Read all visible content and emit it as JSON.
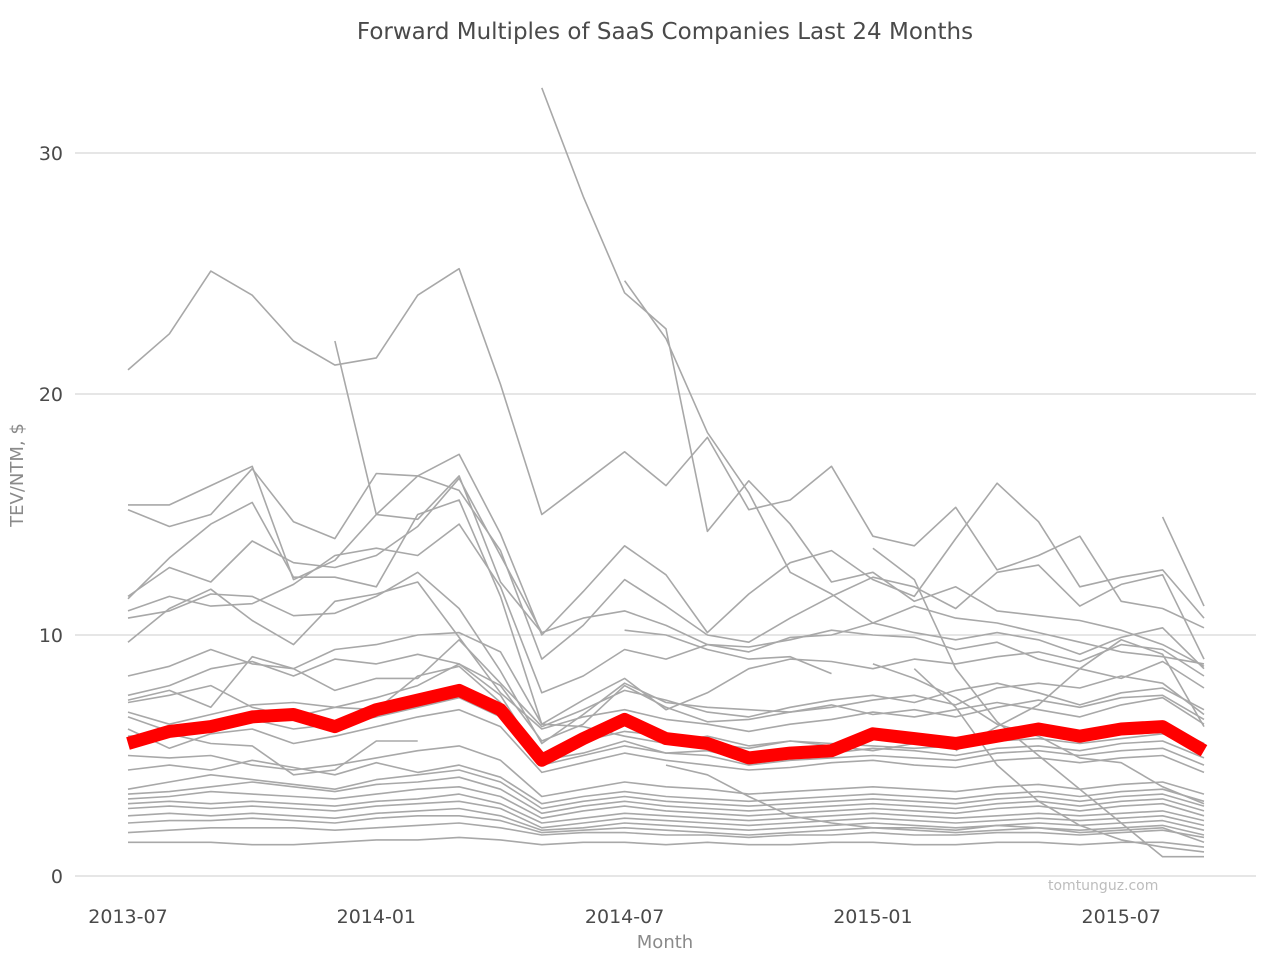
{
  "chart_data": {
    "type": "line",
    "title": "Forward Multiples of SaaS Companies Last 24 Months",
    "xlabel": "Month",
    "ylabel": "TEV/NTM, $",
    "watermark": "tomtunguz.com",
    "x_tick_labels": [
      "2013-07",
      "2014-01",
      "2014-07",
      "2015-01",
      "2015-07"
    ],
    "y_tick_labels": [
      "0",
      "10",
      "20",
      "30"
    ],
    "ylim": [
      0,
      33
    ],
    "grid": true,
    "colors": {
      "companies": "#a8a8a8",
      "highlight": "#ff0000",
      "grid": "#cccccc"
    },
    "x": [
      "2013-07",
      "2013-08",
      "2013-09",
      "2013-10",
      "2013-11",
      "2013-12",
      "2014-01",
      "2014-02",
      "2014-03",
      "2014-04",
      "2014-05",
      "2014-06",
      "2014-07",
      "2014-08",
      "2014-09",
      "2014-10",
      "2014-11",
      "2014-12",
      "2015-01",
      "2015-02",
      "2015-03",
      "2015-04",
      "2015-05",
      "2015-06",
      "2015-07",
      "2015-08",
      "2015-09"
    ],
    "highlight_series": {
      "values": [
        5.5,
        6.0,
        6.2,
        6.6,
        6.7,
        6.2,
        6.9,
        7.3,
        7.7,
        6.9,
        4.8,
        5.7,
        6.5,
        5.7,
        5.5,
        4.9,
        5.1,
        5.2,
        5.9,
        5.7,
        5.5,
        5.8,
        6.1,
        5.8,
        6.1,
        6.2,
        5.2
      ]
    },
    "series": [
      {
        "values": [
          21.0,
          22.5,
          25.1,
          24.1,
          22.2,
          21.2,
          21.5,
          24.1,
          25.2,
          20.4,
          15.0,
          16.3,
          17.6,
          16.2,
          18.2,
          15.2,
          15.6,
          17.0,
          14.1,
          13.7,
          15.3,
          12.7,
          13.3,
          14.1,
          11.4,
          11.1,
          10.3
        ]
      },
      {
        "values": [
          null,
          null,
          null,
          null,
          null,
          22.2,
          15.0,
          14.8,
          16.6,
          12.2,
          10.1,
          null,
          null,
          null,
          null,
          null,
          null,
          null,
          null,
          null,
          null,
          null,
          null,
          null,
          null,
          null,
          null
        ]
      },
      {
        "values": [
          null,
          null,
          null,
          null,
          null,
          null,
          null,
          null,
          null,
          null,
          32.7,
          28.2,
          24.2,
          22.7,
          14.3,
          16.4,
          14.6,
          12.2,
          12.6,
          11.4,
          12.0,
          11.0,
          10.8,
          10.6,
          10.2,
          9.6,
          8.7
        ]
      },
      {
        "values": [
          null,
          null,
          null,
          null,
          null,
          null,
          null,
          null,
          null,
          null,
          null,
          null,
          24.7,
          22.3,
          18.4,
          15.9,
          12.6,
          11.7,
          10.5,
          11.2,
          10.7,
          10.5,
          10.1,
          9.7,
          9.3,
          9.1,
          8.8
        ]
      },
      {
        "values": [
          15.4,
          15.4,
          16.2,
          17.0,
          12.3,
          13.1,
          15.0,
          16.6,
          17.5,
          14.2,
          10.0,
          11.8,
          13.7,
          12.5,
          10.1,
          11.7,
          13.0,
          13.5,
          12.3,
          11.6,
          14.0,
          16.3,
          14.7,
          12.0,
          12.4,
          12.7,
          10.7
        ]
      },
      {
        "values": [
          15.2,
          14.5,
          15.0,
          16.9,
          14.7,
          14.0,
          16.7,
          16.6,
          16.0,
          13.5,
          9.0,
          10.4,
          12.3,
          11.2,
          10.0,
          9.7,
          10.7,
          11.6,
          12.4,
          12.0,
          11.1,
          12.6,
          12.9,
          11.2,
          12.1,
          12.5,
          9.0
        ]
      },
      {
        "values": [
          11.5,
          13.2,
          14.6,
          15.5,
          12.4,
          12.4,
          12.0,
          15.0,
          15.6,
          11.6,
          6.3,
          7.3,
          8.2,
          6.9,
          7.6,
          8.6,
          9.0,
          8.9,
          8.6,
          9.0,
          8.8,
          9.1,
          9.3,
          8.9,
          9.6,
          9.4,
          8.3
        ]
      },
      {
        "values": [
          11.6,
          12.8,
          12.2,
          13.9,
          13.0,
          12.8,
          13.3,
          14.5,
          16.5,
          13.3,
          10.1,
          10.7,
          11.0,
          10.4,
          9.6,
          9.5,
          9.8,
          10.2,
          10.0,
          9.9,
          9.4,
          9.7,
          9.0,
          8.6,
          8.2,
          8.9,
          7.8
        ]
      },
      {
        "values": [
          11.0,
          11.6,
          11.2,
          11.3,
          12.1,
          13.3,
          13.6,
          13.3,
          14.6,
          12.0,
          7.6,
          8.3,
          9.4,
          9.0,
          9.6,
          9.3,
          9.9,
          10.0,
          10.5,
          10.1,
          9.8,
          10.1,
          9.8,
          9.2,
          9.9,
          10.3,
          8.6
        ]
      },
      {
        "values": [
          10.7,
          11.0,
          11.7,
          11.6,
          10.8,
          10.9,
          11.6,
          12.6,
          11.1,
          8.5,
          5.5,
          6.7,
          8.0,
          7.2,
          7.0,
          6.9,
          6.8,
          7.0,
          7.3,
          7.5,
          7.1,
          7.8,
          8.0,
          7.8,
          8.3,
          8.0,
          6.7
        ]
      },
      {
        "values": [
          9.7,
          11.1,
          11.9,
          10.6,
          9.6,
          11.4,
          11.7,
          12.2,
          9.9,
          7.6,
          6.1,
          6.6,
          6.9,
          6.5,
          6.3,
          6.0,
          6.3,
          6.5,
          6.8,
          6.6,
          6.9,
          7.2,
          6.9,
          6.6,
          7.1,
          7.4,
          6.3
        ]
      },
      {
        "values": [
          8.3,
          8.7,
          9.4,
          8.8,
          8.6,
          9.4,
          9.6,
          10.0,
          10.1,
          9.3,
          6.3,
          6.2,
          5.8,
          5.5,
          5.8,
          5.4,
          5.6,
          5.5,
          5.4,
          5.3,
          5.4,
          5.6,
          5.7,
          5.5,
          5.7,
          5.9,
          5.5
        ]
      },
      {
        "values": [
          7.5,
          7.9,
          8.6,
          8.9,
          8.3,
          9.0,
          8.8,
          9.2,
          8.8,
          7.5,
          4.8,
          5.1,
          5.6,
          5.1,
          5.2,
          4.8,
          4.9,
          5.1,
          5.3,
          5.2,
          5.0,
          5.3,
          5.4,
          5.2,
          5.5,
          5.6,
          4.9
        ]
      },
      {
        "values": [
          7.3,
          7.7,
          7.0,
          9.1,
          8.6,
          7.7,
          8.2,
          8.2,
          9.8,
          8.0,
          6.2,
          6.9,
          7.7,
          7.3,
          6.8,
          6.6,
          7.0,
          7.3,
          7.5,
          7.2,
          7.7,
          8.0,
          7.6,
          7.1,
          7.6,
          7.8,
          6.9
        ]
      },
      {
        "values": [
          7.2,
          7.5,
          7.9,
          7.0,
          6.6,
          7.0,
          7.4,
          7.9,
          8.8,
          7.9,
          5.6,
          6.3,
          7.9,
          7.0,
          6.4,
          6.5,
          6.8,
          7.1,
          6.7,
          6.9,
          6.6,
          7.0,
          7.3,
          7.0,
          7.4,
          7.5,
          6.5
        ]
      },
      {
        "values": [
          6.8,
          6.3,
          6.7,
          7.1,
          7.2,
          7.0,
          6.9,
          8.3,
          8.7,
          7.2,
          5.1,
          5.6,
          6.0,
          5.8,
          5.5,
          5.3,
          5.6,
          5.4,
          5.2,
          5.5,
          5.6,
          5.9,
          6.1,
          5.8,
          6.2,
          6.3,
          5.5
        ]
      },
      {
        "values": [
          6.6,
          6.0,
          6.4,
          6.5,
          6.1,
          6.3,
          6.6,
          7.0,
          7.4,
          6.6,
          4.6,
          5.0,
          5.4,
          5.1,
          5.0,
          4.6,
          4.8,
          4.9,
          5.0,
          4.9,
          4.8,
          5.1,
          5.2,
          5.0,
          5.2,
          5.3,
          4.6
        ]
      },
      {
        "values": [
          6.1,
          5.3,
          5.9,
          6.1,
          5.5,
          5.8,
          6.2,
          6.6,
          6.9,
          6.2,
          4.3,
          4.7,
          5.1,
          4.8,
          4.6,
          4.4,
          4.5,
          4.7,
          4.8,
          4.6,
          4.5,
          4.8,
          4.9,
          4.7,
          4.9,
          5.0,
          4.3
        ]
      },
      {
        "values": [
          5.8,
          5.9,
          5.5,
          5.4,
          4.2,
          4.4,
          5.6,
          5.6,
          null,
          null,
          null,
          null,
          null,
          null,
          null,
          null,
          null,
          null,
          null,
          null,
          null,
          null,
          null,
          null,
          null,
          null,
          null
        ]
      },
      {
        "values": [
          null,
          null,
          null,
          null,
          null,
          null,
          null,
          null,
          null,
          null,
          null,
          null,
          null,
          null,
          null,
          null,
          null,
          null,
          13.6,
          12.3,
          8.6,
          6.4,
          5.0,
          3.6,
          2.2,
          0.8,
          0.8
        ]
      },
      {
        "values": [
          null,
          null,
          null,
          null,
          null,
          null,
          null,
          null,
          null,
          null,
          null,
          null,
          null,
          null,
          null,
          null,
          null,
          null,
          null,
          null,
          null,
          null,
          null,
          null,
          null,
          14.9,
          11.2
        ]
      },
      {
        "values": [
          null,
          null,
          null,
          null,
          null,
          null,
          null,
          null,
          null,
          null,
          null,
          null,
          null,
          null,
          null,
          null,
          null,
          null,
          null,
          8.6,
          7.0,
          4.6,
          3.1,
          2.1,
          1.5,
          1.2,
          1.0
        ]
      },
      {
        "values": [
          5.0,
          4.9,
          5.0,
          4.6,
          4.4,
          4.6,
          4.9,
          5.2,
          5.4,
          4.8,
          3.3,
          3.6,
          3.9,
          3.7,
          3.6,
          3.4,
          3.5,
          3.6,
          3.7,
          3.6,
          3.5,
          3.7,
          3.8,
          3.6,
          3.8,
          3.9,
          3.4
        ]
      },
      {
        "values": [
          4.4,
          4.6,
          4.4,
          4.8,
          4.5,
          4.2,
          4.7,
          4.3,
          4.6,
          4.1,
          3.0,
          3.3,
          3.5,
          3.3,
          3.2,
          3.1,
          3.2,
          3.3,
          3.4,
          3.3,
          3.2,
          3.4,
          3.5,
          3.3,
          3.5,
          3.6,
          3.1
        ]
      },
      {
        "values": [
          3.6,
          3.9,
          4.2,
          4.0,
          3.8,
          3.6,
          4.0,
          4.2,
          4.4,
          3.9,
          2.8,
          3.1,
          3.3,
          3.1,
          3.0,
          2.9,
          3.0,
          3.1,
          3.2,
          3.1,
          3.0,
          3.2,
          3.3,
          3.1,
          3.3,
          3.4,
          2.9
        ]
      },
      {
        "values": [
          3.4,
          3.5,
          3.7,
          3.9,
          3.7,
          3.5,
          3.8,
          3.9,
          4.1,
          3.6,
          2.6,
          2.9,
          3.1,
          2.9,
          2.8,
          2.7,
          2.8,
          2.9,
          3.0,
          2.9,
          2.8,
          3.0,
          3.1,
          2.9,
          3.1,
          3.2,
          2.7
        ]
      },
      {
        "values": [
          3.2,
          3.3,
          3.5,
          3.4,
          3.3,
          3.2,
          3.4,
          3.6,
          3.7,
          3.3,
          2.4,
          2.7,
          2.9,
          2.7,
          2.6,
          2.5,
          2.6,
          2.7,
          2.8,
          2.7,
          2.6,
          2.8,
          2.9,
          2.7,
          2.9,
          3.0,
          2.5
        ]
      },
      {
        "values": [
          3.0,
          3.1,
          3.0,
          3.1,
          3.0,
          2.9,
          3.1,
          3.2,
          3.4,
          3.0,
          2.2,
          2.4,
          2.6,
          2.5,
          2.4,
          2.3,
          2.4,
          2.5,
          2.6,
          2.5,
          2.4,
          2.5,
          2.6,
          2.5,
          2.6,
          2.7,
          2.3
        ]
      },
      {
        "values": [
          2.8,
          2.9,
          2.8,
          2.9,
          2.8,
          2.7,
          2.9,
          3.0,
          3.1,
          2.8,
          2.0,
          2.2,
          2.4,
          2.3,
          2.2,
          2.1,
          2.2,
          2.3,
          2.4,
          2.3,
          2.2,
          2.3,
          2.4,
          2.3,
          2.4,
          2.5,
          2.1
        ]
      },
      {
        "values": [
          2.5,
          2.6,
          2.5,
          2.6,
          2.5,
          2.4,
          2.6,
          2.7,
          2.8,
          2.5,
          1.9,
          2.0,
          2.2,
          2.1,
          2.0,
          1.9,
          2.0,
          2.1,
          2.2,
          2.1,
          2.0,
          2.1,
          2.2,
          2.1,
          2.2,
          2.3,
          1.9
        ]
      },
      {
        "values": [
          2.2,
          2.3,
          2.3,
          2.4,
          2.3,
          2.2,
          2.4,
          2.5,
          2.5,
          2.3,
          1.8,
          1.9,
          2.0,
          1.9,
          1.8,
          1.7,
          1.8,
          1.9,
          2.0,
          1.9,
          1.8,
          1.9,
          2.0,
          1.9,
          2.0,
          2.1,
          1.7
        ]
      },
      {
        "values": [
          1.8,
          1.9,
          2.0,
          2.0,
          2.0,
          1.9,
          2.0,
          2.1,
          2.2,
          2.0,
          1.7,
          1.8,
          1.8,
          1.7,
          1.7,
          1.6,
          1.7,
          1.7,
          1.8,
          1.7,
          1.7,
          1.8,
          1.8,
          1.7,
          1.8,
          1.9,
          1.6
        ]
      },
      {
        "values": [
          1.4,
          1.4,
          1.4,
          1.3,
          1.3,
          1.4,
          1.5,
          1.5,
          1.6,
          1.5,
          1.3,
          1.4,
          1.4,
          1.3,
          1.4,
          1.3,
          1.3,
          1.4,
          1.4,
          1.3,
          1.3,
          1.4,
          1.4,
          1.3,
          1.4,
          1.4,
          1.2
        ]
      },
      {
        "values": [
          null,
          null,
          null,
          null,
          null,
          null,
          null,
          null,
          null,
          null,
          null,
          null,
          10.2,
          10.0,
          9.4,
          9.0,
          9.1,
          8.4,
          null,
          null,
          null,
          null,
          null,
          null,
          null,
          null,
          null
        ]
      },
      {
        "values": [
          null,
          null,
          null,
          null,
          null,
          null,
          null,
          null,
          null,
          null,
          null,
          null,
          null,
          4.6,
          4.2,
          3.3,
          2.5,
          2.2,
          2.0,
          2.0,
          1.9,
          2.1,
          2.0,
          1.8,
          1.9,
          2.0,
          1.4
        ]
      },
      {
        "values": [
          null,
          null,
          null,
          null,
          null,
          null,
          null,
          null,
          null,
          null,
          null,
          null,
          null,
          null,
          null,
          null,
          null,
          null,
          8.8,
          8.2,
          7.4,
          6.3,
          5.8,
          4.9,
          4.7,
          3.7,
          3.0
        ]
      },
      {
        "values": [
          null,
          null,
          null,
          null,
          null,
          null,
          null,
          null,
          null,
          null,
          null,
          null,
          null,
          null,
          null,
          null,
          null,
          null,
          null,
          null,
          5.2,
          6.2,
          7.1,
          8.6,
          9.8,
          9.2,
          6.2
        ]
      }
    ]
  }
}
